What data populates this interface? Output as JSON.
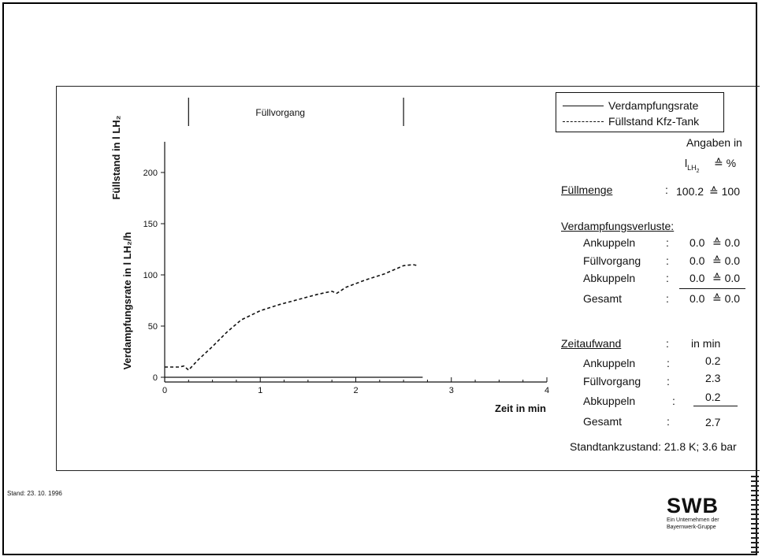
{
  "chart_data": {
    "type": "line",
    "xlabel": "Zeit in min",
    "ylabel": "Verdampfungsrate in l LH₂/h",
    "ylabel2": "Füllstand in l LH₂",
    "xlim": [
      0,
      4
    ],
    "ylim": [
      0,
      230
    ],
    "xticks": [
      "0",
      "1",
      "2",
      "3",
      "4"
    ],
    "yticks": [
      "0",
      "50",
      "100",
      "150",
      "200"
    ],
    "phase_label": "Füllvorgang",
    "phase_range": [
      0.25,
      2.5
    ],
    "series": [
      {
        "name": "Verdampfungsrate",
        "style": "solid",
        "x": [
          0,
          2.7
        ],
        "y": [
          0,
          0
        ]
      },
      {
        "name": "Füllstand Kfz-Tank",
        "style": "dashed",
        "x": [
          0,
          0.15,
          0.2,
          0.25,
          0.35,
          0.5,
          0.65,
          0.8,
          1.0,
          1.2,
          1.4,
          1.6,
          1.75,
          1.8,
          1.9,
          2.1,
          2.3,
          2.5,
          2.6,
          2.65
        ],
        "y": [
          10,
          10,
          11,
          7,
          17,
          30,
          44,
          56,
          65,
          71,
          76,
          81,
          84,
          82,
          88,
          95,
          101,
          109,
          110,
          109
        ]
      }
    ],
    "grid": false,
    "legend": "top-right"
  },
  "legend": {
    "solid_label": "Verdampfungsrate",
    "dashed_label": "Füllstand Kfz-Tank"
  },
  "info": {
    "angaben_title": "Angaben in",
    "angaben_unit": "l",
    "angaben_sub": "LH",
    "angaben_subsub": "2",
    "angaben_eq": "≙ %",
    "fuellmenge_label": "Füllmenge",
    "fuellmenge_colon": ":",
    "fuellmenge_value": "100.2",
    "fuellmenge_eq": "≙ 100",
    "verluste_title": "Verdampfungsverluste:",
    "verluste": [
      {
        "label": "Ankuppeln",
        "colon": ":",
        "value": "0.0",
        "eq": "≙ 0.0"
      },
      {
        "label": "Füllvorgang",
        "colon": ":",
        "value": "0.0",
        "eq": "≙ 0.0"
      },
      {
        "label": "Abkuppeln",
        "colon": ":",
        "value": "0.0",
        "eq": "≙ 0.0"
      },
      {
        "label": "Gesamt",
        "colon": ":",
        "value": "0.0",
        "eq": "≙ 0.0"
      }
    ],
    "zeit_title": "Zeitaufwand",
    "zeit_colon": ":",
    "zeit_unit": "in min",
    "zeit": [
      {
        "label": "Ankuppeln",
        "colon": ":",
        "value": "0.2"
      },
      {
        "label": "Füllvorgang",
        "colon": ":",
        "value": "2.3"
      },
      {
        "label": "Abkuppeln",
        "colon": ":",
        "value": "0.2"
      },
      {
        "label": "Gesamt",
        "colon": ":",
        "value": "2.7"
      }
    ],
    "standtank": "Standtankzustand: 21.8 K;  3.6 bar"
  },
  "footer": {
    "date": "Stand: 23. 10. 1996",
    "logo_word": "SWB",
    "logo_sub1": "Ein Unternehmen der",
    "logo_sub2": "Bayernwerk-Gruppe"
  }
}
